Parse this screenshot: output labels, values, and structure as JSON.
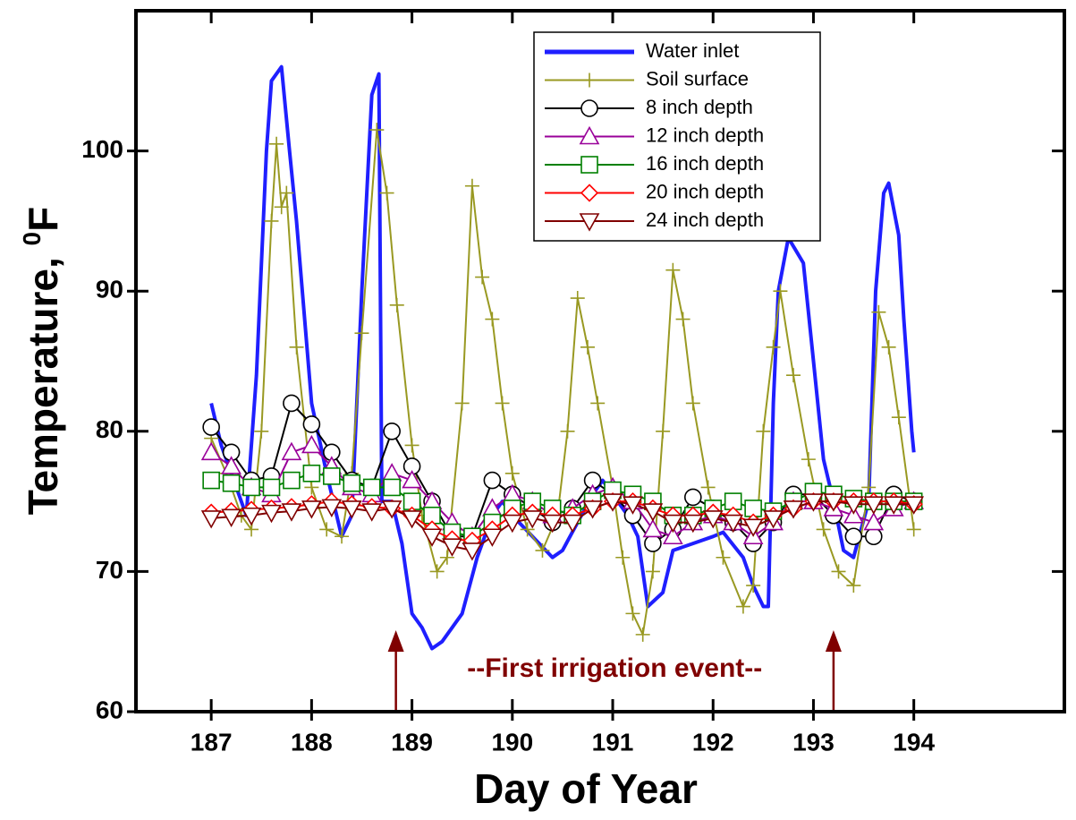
{
  "chart_data": {
    "type": "line",
    "xlabel": "Day of Year",
    "ylabel": "Temperature, ",
    "ylabel_sup": "0",
    "ylabel_unit": "F",
    "xlim": [
      186.25,
      195.5
    ],
    "ylim": [
      60,
      110
    ],
    "xticks": [
      187,
      188,
      189,
      190,
      191,
      192,
      193,
      194
    ],
    "yticks": [
      60,
      70,
      80,
      90,
      100
    ],
    "legend": "top-center",
    "annotation": {
      "text": "--First irrigation event--",
      "arrows_x": [
        188.84,
        193.2
      ],
      "arrow_top": 65.3,
      "y": 63
    },
    "series": [
      {
        "name": "Water inlet",
        "color": "#1f1fff",
        "marker": "none",
        "x": [
          187.0,
          187.1,
          187.25,
          187.35,
          187.45,
          187.55,
          187.6,
          187.7,
          187.78,
          187.85,
          188.0,
          188.15,
          188.3,
          188.4,
          188.5,
          188.6,
          188.67,
          188.7,
          188.8,
          188.9,
          189.0,
          189.1,
          189.2,
          189.3,
          189.5,
          189.65,
          189.8,
          189.9,
          190.0,
          190.2,
          190.4,
          190.5,
          190.65,
          190.8,
          190.9,
          191.0,
          191.15,
          191.25,
          191.35,
          191.5,
          191.6,
          191.8,
          192.0,
          192.1,
          192.3,
          192.4,
          192.5,
          192.55,
          192.6,
          192.65,
          192.75,
          192.9,
          193.0,
          193.1,
          193.2,
          193.3,
          193.4,
          193.55,
          193.62,
          193.7,
          193.75,
          193.85,
          193.9,
          193.98,
          194.0
        ],
        "values": [
          82,
          79,
          76,
          74,
          84,
          100,
          105,
          106,
          100,
          95,
          82,
          77,
          72.5,
          74,
          90,
          104,
          105.5,
          75,
          75,
          72,
          67,
          66,
          64.5,
          65,
          67,
          71,
          74,
          75,
          74,
          72.5,
          71,
          71.5,
          73.5,
          75.5,
          76.5,
          75.5,
          74,
          72.5,
          67.5,
          68.5,
          71.5,
          72,
          72.5,
          72.8,
          71,
          69,
          67.5,
          67.5,
          82,
          90,
          93.8,
          92,
          85,
          78,
          75,
          71.5,
          71,
          75,
          90,
          97,
          97.7,
          94,
          88,
          80,
          78.5
        ]
      },
      {
        "name": "Soil surface",
        "color": "#999922",
        "marker": "plus",
        "x": [
          187.0,
          187.15,
          187.3,
          187.4,
          187.5,
          187.6,
          187.65,
          187.7,
          187.75,
          187.85,
          188.0,
          188.15,
          188.3,
          188.4,
          188.5,
          188.65,
          188.75,
          188.85,
          189.0,
          189.1,
          189.25,
          189.35,
          189.5,
          189.6,
          189.7,
          189.8,
          189.9,
          190.0,
          190.15,
          190.3,
          190.45,
          190.55,
          190.65,
          190.75,
          190.85,
          191.0,
          191.1,
          191.2,
          191.3,
          191.4,
          191.5,
          191.6,
          191.7,
          191.8,
          191.95,
          192.1,
          192.3,
          192.4,
          192.5,
          192.6,
          192.67,
          192.8,
          192.95,
          193.1,
          193.25,
          193.4,
          193.55,
          193.65,
          193.75,
          193.85,
          194.0
        ],
        "values": [
          79.5,
          77,
          74,
          73,
          80,
          95,
          100.5,
          96,
          97,
          86,
          76,
          73,
          72.5,
          77,
          87,
          101.5,
          97,
          89,
          79,
          74,
          70,
          71,
          82,
          97.5,
          91,
          88,
          82,
          77,
          73,
          71.5,
          74,
          80,
          89.5,
          86,
          82,
          76,
          71,
          67,
          65.5,
          70,
          80,
          91.5,
          88,
          82,
          76,
          71,
          67.5,
          69,
          80,
          86,
          90,
          84,
          78,
          73,
          70,
          69,
          76,
          88.5,
          86,
          81,
          73
        ]
      },
      {
        "name": "8 inch depth",
        "color": "#000000",
        "marker": "circle",
        "x": [
          187.0,
          187.2,
          187.4,
          187.6,
          187.8,
          188.0,
          188.2,
          188.4,
          188.6,
          188.8,
          189.0,
          189.2,
          189.4,
          189.6,
          189.8,
          190.0,
          190.2,
          190.4,
          190.6,
          190.8,
          191.0,
          191.2,
          191.4,
          191.6,
          191.8,
          192.0,
          192.2,
          192.4,
          192.6,
          192.8,
          193.0,
          193.2,
          193.4,
          193.6,
          193.8,
          194.0
        ],
        "values": [
          80.3,
          78.5,
          76.5,
          76.8,
          82,
          80.5,
          78.5,
          76.5,
          76,
          80,
          77.5,
          75,
          72.5,
          72.5,
          76.5,
          75.5,
          74.5,
          73.5,
          74.5,
          76.5,
          75.5,
          74,
          72,
          73,
          75.3,
          74.5,
          73.5,
          72,
          73.5,
          75.5,
          75.5,
          74,
          72.5,
          72.5,
          75.5,
          75
        ]
      },
      {
        "name": "12 inch depth",
        "color": "#990099",
        "marker": "triangle-up",
        "x": [
          187.0,
          187.2,
          187.4,
          187.6,
          187.8,
          188.0,
          188.2,
          188.4,
          188.6,
          188.8,
          189.0,
          189.2,
          189.4,
          189.6,
          189.8,
          190.0,
          190.2,
          190.4,
          190.6,
          190.8,
          191.0,
          191.2,
          191.4,
          191.6,
          191.8,
          192.0,
          192.2,
          192.4,
          192.6,
          192.8,
          193.0,
          193.2,
          193.4,
          193.6,
          193.8,
          194.0
        ],
        "values": [
          78.5,
          77.5,
          76,
          75.5,
          78.5,
          79,
          77.5,
          76,
          75.5,
          77,
          76.5,
          75,
          73.5,
          72.5,
          74.5,
          75.5,
          75,
          74,
          74.5,
          75.5,
          76,
          75,
          73,
          72.5,
          73.5,
          74,
          73.5,
          72.5,
          73.5,
          75,
          75,
          74.5,
          74,
          73.5,
          74.5,
          75
        ]
      },
      {
        "name": "16 inch depth",
        "color": "#008000",
        "marker": "square",
        "x": [
          187.0,
          187.2,
          187.4,
          187.6,
          187.8,
          188.0,
          188.2,
          188.4,
          188.6,
          188.8,
          189.0,
          189.2,
          189.4,
          189.6,
          189.8,
          190.0,
          190.2,
          190.4,
          190.6,
          190.8,
          191.0,
          191.2,
          191.4,
          191.6,
          191.8,
          192.0,
          192.2,
          192.4,
          192.6,
          192.8,
          193.0,
          193.2,
          193.4,
          193.6,
          193.8,
          194.0
        ],
        "values": [
          76.5,
          76.3,
          76,
          76,
          76.5,
          77,
          76.8,
          76.3,
          76,
          76,
          75,
          74,
          72.8,
          72.5,
          73.5,
          74.5,
          75,
          74.5,
          74,
          75,
          75.8,
          75.5,
          75,
          74,
          74,
          74.5,
          75,
          74.5,
          74.3,
          75,
          75.7,
          75.5,
          75.2,
          75,
          75,
          75
        ]
      },
      {
        "name": "20 inch depth",
        "color": "#ff0000",
        "marker": "diamond",
        "x": [
          187.0,
          187.2,
          187.4,
          187.6,
          187.8,
          188.0,
          188.2,
          188.4,
          188.6,
          188.8,
          189.0,
          189.2,
          189.4,
          189.6,
          189.8,
          190.0,
          190.2,
          190.4,
          190.6,
          190.8,
          191.0,
          191.2,
          191.4,
          191.6,
          191.8,
          192.0,
          192.2,
          192.4,
          192.6,
          192.8,
          193.0,
          193.2,
          193.4,
          193.6,
          193.8,
          194.0
        ],
        "values": [
          74.2,
          74.3,
          74.4,
          74.5,
          74.6,
          74.8,
          75,
          74.8,
          74.6,
          74.5,
          74,
          73,
          72.3,
          72.2,
          73,
          74,
          74.2,
          74,
          74,
          74.5,
          75,
          75,
          74.5,
          74,
          74,
          74.2,
          74,
          73.5,
          74,
          74.5,
          75,
          75,
          75,
          75,
          75,
          74.8
        ]
      },
      {
        "name": "24 inch depth",
        "color": "#800000",
        "marker": "triangle-down",
        "x": [
          187.0,
          187.2,
          187.4,
          187.6,
          187.8,
          188.0,
          188.2,
          188.4,
          188.6,
          188.8,
          189.0,
          189.2,
          189.4,
          189.6,
          189.8,
          190.0,
          190.2,
          190.4,
          190.6,
          190.8,
          191.0,
          191.2,
          191.4,
          191.6,
          191.8,
          192.0,
          192.2,
          192.4,
          192.6,
          192.8,
          193.0,
          193.2,
          193.4,
          193.6,
          193.8,
          194.0
        ],
        "values": [
          73.8,
          73.9,
          74,
          74.2,
          74.3,
          74.5,
          74.6,
          74.5,
          74.3,
          74.5,
          73.8,
          72.5,
          71.8,
          71.5,
          72.5,
          73.5,
          73.8,
          73.5,
          73.5,
          74.5,
          75,
          74.8,
          74.3,
          73.5,
          73.5,
          73.8,
          73.5,
          73.2,
          73.8,
          74.5,
          75,
          75,
          74.8,
          74.8,
          74.8,
          74.8
        ]
      }
    ]
  }
}
